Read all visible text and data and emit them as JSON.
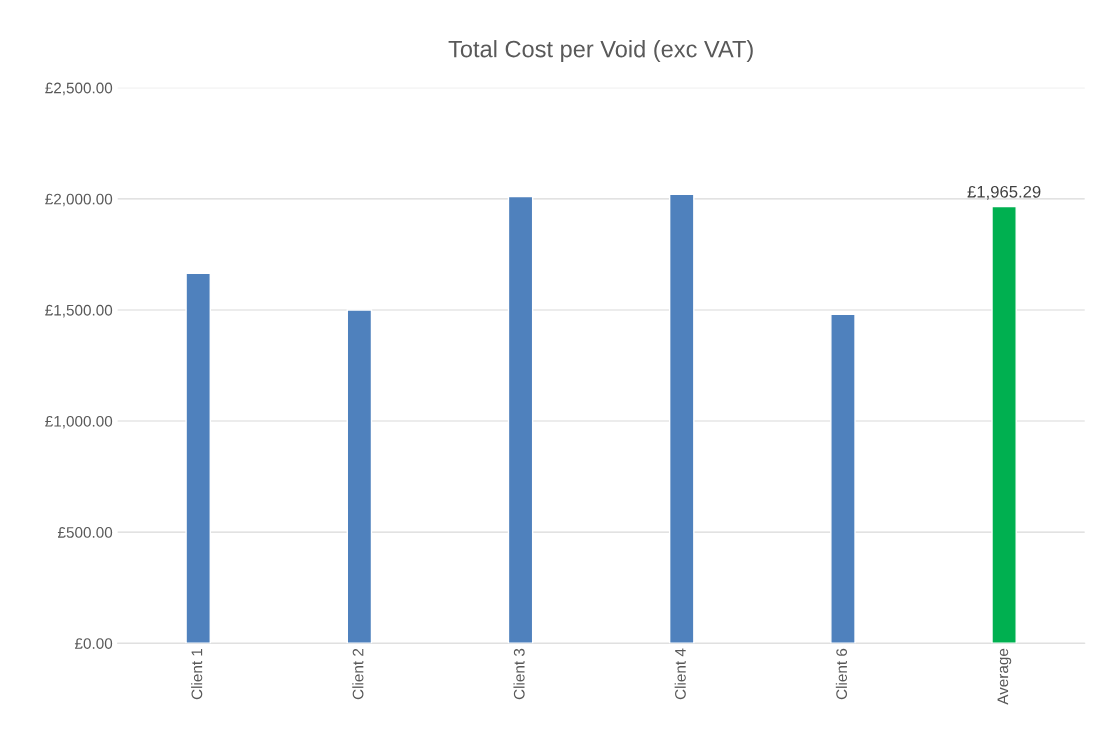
{
  "chart_data": {
    "type": "bar",
    "title": "Total Cost per Void (exc VAT)",
    "categories": [
      "Client 1",
      "Client 2",
      "Client 3",
      "Client 4",
      "Client 6",
      "Average"
    ],
    "values": [
      1665,
      1500,
      2010,
      2020,
      1480,
      1965.29
    ],
    "colors": [
      "#4f81bd",
      "#4f81bd",
      "#4f81bd",
      "#4f81bd",
      "#4f81bd",
      "#00b050"
    ],
    "value_labels": [
      null,
      null,
      null,
      null,
      null,
      "£1,965.29"
    ],
    "ylim": [
      0,
      2500
    ],
    "yticks": [
      {
        "value": 0,
        "label": "£0.00"
      },
      {
        "value": 500,
        "label": "£500.00"
      },
      {
        "value": 1000,
        "label": "£1,000.00"
      },
      {
        "value": 1500,
        "label": "£1,500.00"
      },
      {
        "value": 2000,
        "label": "£2,000.00"
      },
      {
        "value": 2500,
        "label": "£2,500.00"
      }
    ],
    "grid": "y",
    "legend": false
  }
}
